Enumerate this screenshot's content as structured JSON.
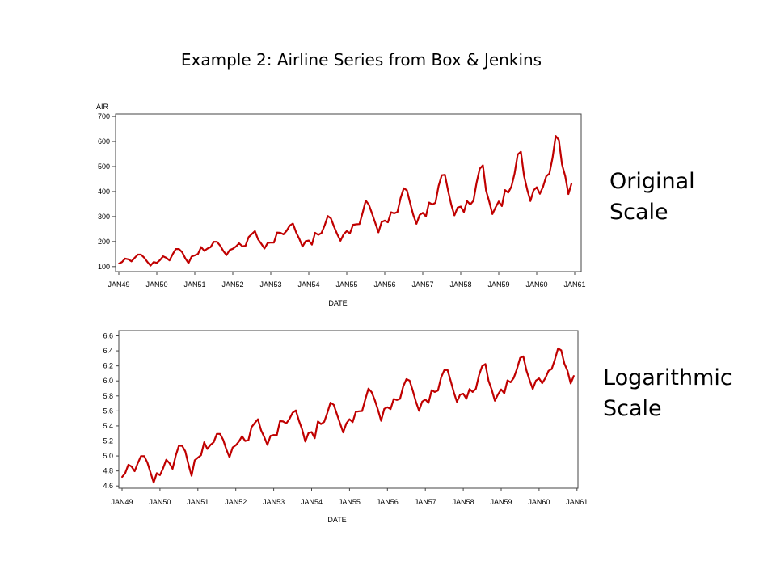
{
  "slide": {
    "title": "Example 2:  Airline Series from Box & Jenkins",
    "label_original": [
      "Original",
      "Scale"
    ],
    "label_log": [
      "Logarithmic",
      "Scale"
    ]
  },
  "chart_data": [
    {
      "type": "line",
      "title": "",
      "ylabel": "AIR",
      "xlabel": "DATE",
      "x_tick_labels": [
        "JAN49",
        "JAN50",
        "JAN51",
        "JAN52",
        "JAN53",
        "JAN54",
        "JAN55",
        "JAN56",
        "JAN57",
        "JAN58",
        "JAN59",
        "JAN60",
        "JAN61"
      ],
      "y_tick_labels": [
        "100",
        "200",
        "300",
        "400",
        "500",
        "600",
        "700"
      ],
      "ylim": [
        80,
        710
      ],
      "x_start": "JAN49",
      "x_interval": "month",
      "line_color": "#c00000",
      "series": [
        {
          "values": [
            112,
            118,
            132,
            129,
            121,
            135,
            148,
            148,
            136,
            119,
            104,
            118,
            115,
            126,
            141,
            135,
            125,
            149,
            170,
            170,
            158,
            133,
            114,
            140,
            145,
            150,
            178,
            163,
            172,
            178,
            199,
            199,
            184,
            162,
            146,
            166,
            171,
            180,
            193,
            181,
            183,
            218,
            230,
            242,
            209,
            191,
            172,
            194,
            196,
            196,
            236,
            235,
            229,
            243,
            264,
            272,
            237,
            211,
            180,
            201,
            204,
            188,
            235,
            227,
            234,
            264,
            302,
            293,
            259,
            229,
            203,
            229,
            242,
            233,
            267,
            269,
            270,
            315,
            364,
            347,
            312,
            274,
            237,
            278,
            284,
            277,
            317,
            313,
            318,
            374,
            413,
            405,
            355,
            306,
            271,
            306,
            315,
            301,
            356,
            348,
            355,
            422,
            465,
            467,
            404,
            347,
            305,
            336,
            340,
            318,
            362,
            348,
            363,
            435,
            491,
            505,
            404,
            359,
            310,
            337,
            360,
            342,
            406,
            396,
            420,
            472,
            548,
            559,
            463,
            407,
            362,
            405,
            417,
            391,
            419,
            461,
            472,
            535,
            622,
            606,
            508,
            461,
            390,
            432
          ]
        }
      ]
    },
    {
      "type": "line",
      "title": "",
      "ylabel": "",
      "xlabel": "DATE",
      "x_tick_labels": [
        "JAN49",
        "JAN50",
        "JAN51",
        "JAN52",
        "JAN53",
        "JAN54",
        "JAN55",
        "JAN56",
        "JAN57",
        "JAN58",
        "JAN59",
        "JAN60",
        "JAN61"
      ],
      "y_tick_labels": [
        "4.6",
        "4.8",
        "5.0",
        "5.2",
        "5.4",
        "5.6",
        "5.8",
        "6.0",
        "6.2",
        "6.4",
        "6.6"
      ],
      "ylim": [
        4.57,
        6.67
      ],
      "x_start": "JAN49",
      "x_interval": "month",
      "transform": "natural log of AIR",
      "line_color": "#c00000",
      "series": [
        {
          "values_from": "log(AIR)"
        }
      ]
    }
  ]
}
